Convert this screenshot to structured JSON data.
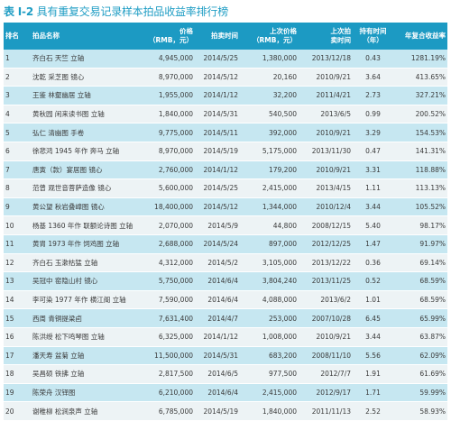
{
  "title": {
    "label": "表 I-2",
    "text": "具有重复交易记录样本拍品收益率排行榜"
  },
  "headers": {
    "rank": "排名",
    "name": "拍品名称",
    "price": "价格\n（RMB，元）",
    "date": "拍卖时间",
    "prev_price": "上次价格\n（RMB，元）",
    "prev_date": "上次拍\n卖时间",
    "hold": "持有时间\n（年）",
    "cagr": "年复合收益率"
  },
  "rows": [
    {
      "rank": "1",
      "name": "齐白石 天竺 立轴",
      "price": "4,945,000",
      "date": "2014/5/25",
      "prev_price": "1,380,000",
      "prev_date": "2013/12/18",
      "hold": "0.43",
      "cagr": "1281.19%"
    },
    {
      "rank": "2",
      "name": "沈乾 采芝图 镜心",
      "price": "8,970,000",
      "date": "2014/5/12",
      "prev_price": "20,160",
      "prev_date": "2010/9/21",
      "hold": "3.64",
      "cagr": "413.65%"
    },
    {
      "rank": "3",
      "name": "王鉴 林壑幽居 立轴",
      "price": "1,955,000",
      "date": "2014/1/12",
      "prev_price": "32,200",
      "prev_date": "2011/4/21",
      "hold": "2.73",
      "cagr": "327.21%"
    },
    {
      "rank": "4",
      "name": "黄秋园 闲来读书图 立轴",
      "price": "1,840,000",
      "date": "2014/5/31",
      "prev_price": "540,500",
      "prev_date": "2013/6/5",
      "hold": "0.99",
      "cagr": "200.52%"
    },
    {
      "rank": "5",
      "name": "弘仁 清幽图 手卷",
      "price": "9,775,000",
      "date": "2014/5/11",
      "prev_price": "392,000",
      "prev_date": "2010/9/21",
      "hold": "3.29",
      "cagr": "154.53%"
    },
    {
      "rank": "6",
      "name": "徐悲鸿 1945 年作 奔马 立轴",
      "price": "8,970,000",
      "date": "2014/5/19",
      "prev_price": "5,175,000",
      "prev_date": "2013/11/30",
      "hold": "0.47",
      "cagr": "141.31%"
    },
    {
      "rank": "7",
      "name": "唐寅（款）宴居图 镜心",
      "price": "2,760,000",
      "date": "2014/1/12",
      "prev_price": "179,200",
      "prev_date": "2010/9/21",
      "hold": "3.31",
      "cagr": "118.88%"
    },
    {
      "rank": "8",
      "name": "范曾 观世音菩萨造像 镜心",
      "price": "5,600,000",
      "date": "2014/5/25",
      "prev_price": "2,415,000",
      "prev_date": "2013/4/15",
      "hold": "1.11",
      "cagr": "113.13%"
    },
    {
      "rank": "9",
      "name": "黄公望 秋岩叠嶂图 镜心",
      "price": "18,400,000",
      "date": "2014/5/12",
      "prev_price": "1,344,000",
      "prev_date": "2010/12/4",
      "hold": "3.44",
      "cagr": "105.52%"
    },
    {
      "rank": "10",
      "name": "杨基 1360 年作 联额论诗图 立轴",
      "price": "2,070,000",
      "date": "2014/5/9",
      "prev_price": "44,800",
      "prev_date": "2008/12/15",
      "hold": "5.40",
      "cagr": "98.17%"
    },
    {
      "rank": "11",
      "name": "黄胄 1973 年作 饲鸡图 立轴",
      "price": "2,688,000",
      "date": "2014/5/24",
      "prev_price": "897,000",
      "prev_date": "2012/12/25",
      "hold": "1.47",
      "cagr": "91.97%"
    },
    {
      "rank": "12",
      "name": "齐白石 玉漱枯猛 立轴",
      "price": "4,312,000",
      "date": "2014/5/2",
      "prev_price": "3,105,000",
      "prev_date": "2013/12/22",
      "hold": "0.36",
      "cagr": "69.14%"
    },
    {
      "rank": "13",
      "name": "吴冠中 窑隐山村 镜心",
      "price": "5,750,000",
      "date": "2014/6/4",
      "prev_price": "3,804,240",
      "prev_date": "2013/11/25",
      "hold": "0.52",
      "cagr": "68.59%"
    },
    {
      "rank": "14",
      "name": "李可染 1977 年作 横江阁 立轴",
      "price": "7,590,000",
      "date": "2014/6/4",
      "prev_price": "4,088,000",
      "prev_date": "2013/6/2",
      "hold": "1.01",
      "cagr": "68.59%"
    },
    {
      "rank": "15",
      "name": "西周 青铜提梁卣",
      "price": "7,631,400",
      "date": "2014/4/7",
      "prev_price": "253,000",
      "prev_date": "2007/10/28",
      "hold": "6.45",
      "cagr": "65.99%"
    },
    {
      "rank": "16",
      "name": "陈洪绶 松下鸣琴图 立轴",
      "price": "6,325,000",
      "date": "2014/1/12",
      "prev_price": "1,008,000",
      "prev_date": "2010/9/21",
      "hold": "3.44",
      "cagr": "63.87%"
    },
    {
      "rank": "17",
      "name": "潘天寿 盆菊 立轴",
      "price": "11,500,000",
      "date": "2014/5/31",
      "prev_price": "683,200",
      "prev_date": "2008/11/10",
      "hold": "5.56",
      "cagr": "62.09%"
    },
    {
      "rank": "18",
      "name": "吴昌硕 铁拂 立轴",
      "price": "2,817,500",
      "date": "2014/6/5",
      "prev_price": "977,500",
      "prev_date": "2012/7/7",
      "hold": "1.91",
      "cagr": "61.69%"
    },
    {
      "rank": "19",
      "name": "陈荣舟 汉铎图",
      "price": "6,210,000",
      "date": "2014/6/4",
      "prev_price": "2,415,000",
      "prev_date": "2012/9/17",
      "hold": "1.71",
      "cagr": "59.99%"
    },
    {
      "rank": "20",
      "name": "谢稚柳 松涧泉声 立轴",
      "price": "6,785,000",
      "date": "2014/5/19",
      "prev_price": "1,840,000",
      "prev_date": "2011/11/13",
      "hold": "2.52",
      "cagr": "58.93%"
    }
  ]
}
